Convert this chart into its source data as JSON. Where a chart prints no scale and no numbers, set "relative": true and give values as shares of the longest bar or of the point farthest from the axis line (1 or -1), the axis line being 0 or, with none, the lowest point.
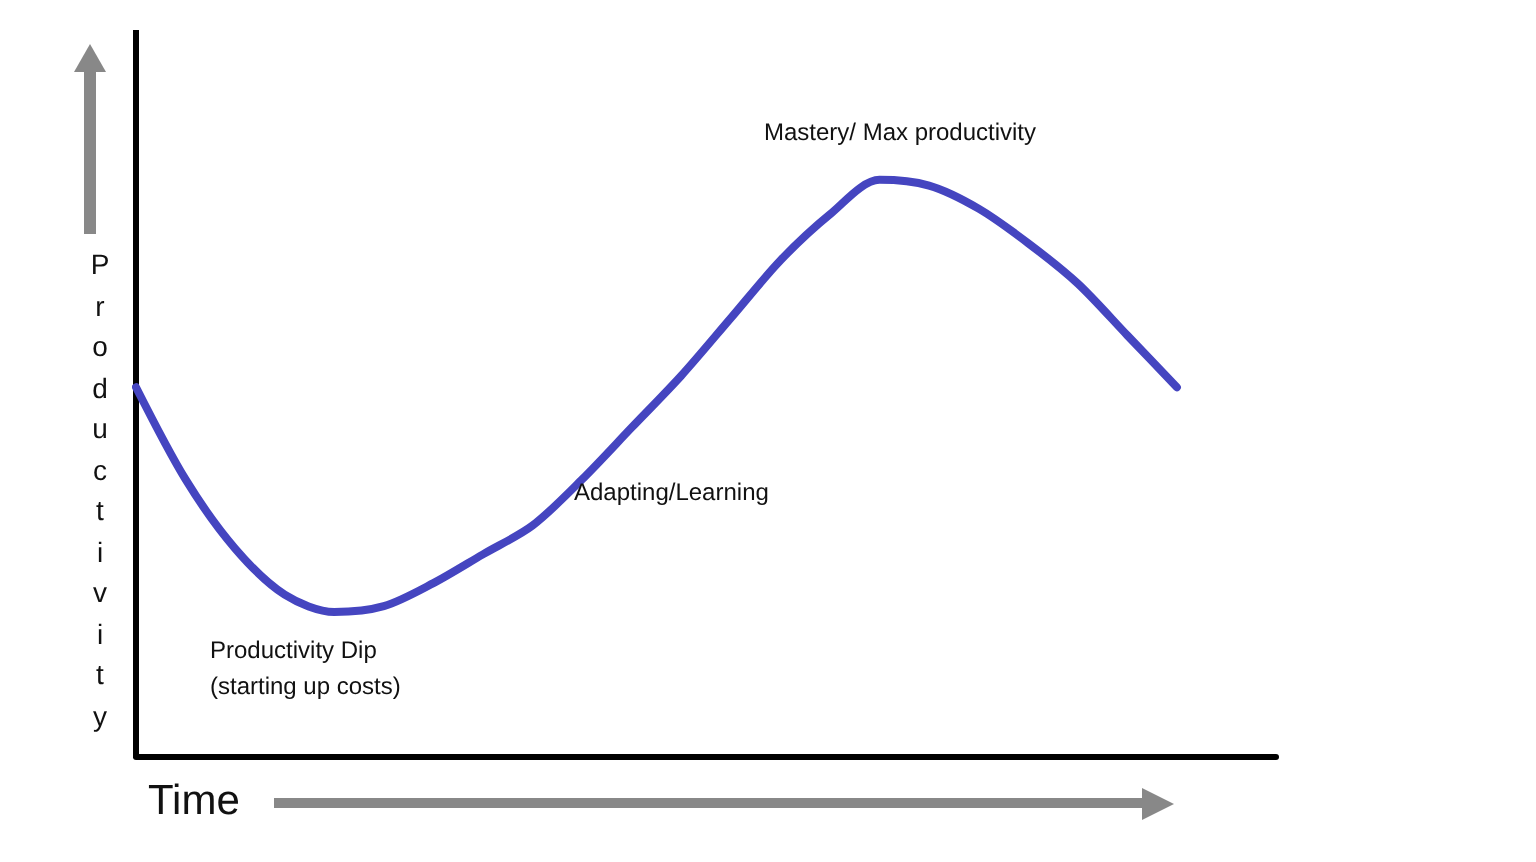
{
  "chart_data": {
    "type": "line",
    "relative": true,
    "xlabel": "Time",
    "ylabel": "Productivity",
    "categories": [
      null,
      null,
      null,
      null,
      null,
      null,
      null,
      null,
      null,
      null,
      null,
      null,
      null,
      null,
      null,
      null,
      null,
      null,
      null,
      null,
      null,
      null,
      null,
      null
    ],
    "series": [
      {
        "color": "#4545c0",
        "values": [
          0.64,
          0.48,
          0.36,
          0.28,
          0.25,
          0.26,
          0.3,
          0.35,
          0.4,
          0.48,
          0.57,
          0.66,
          0.76,
          0.86,
          0.94,
          1.0,
          0.99,
          0.95,
          0.89,
          0.82,
          0.73,
          0.64,
          null,
          null
        ]
      }
    ],
    "annotations": [
      "Mastery/ Max productivity",
      "Adapting/Learning",
      "Productivity Dip\n(starting up costs)"
    ],
    "marker": "none",
    "line_style": "solid"
  }
}
